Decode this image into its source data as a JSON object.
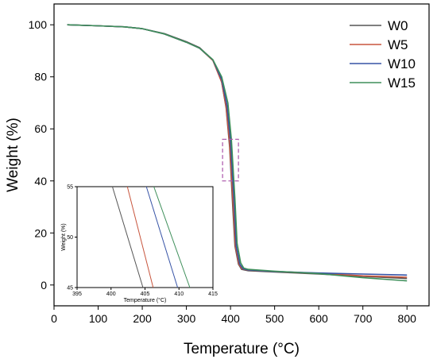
{
  "chart_data": [
    {
      "type": "line",
      "title": "",
      "xlabel": "Temperature (°C)",
      "ylabel": "Weight  (%)",
      "xlim": [
        0,
        850
      ],
      "ylim": [
        -8,
        108
      ],
      "xticks": [
        0,
        100,
        200,
        300,
        400,
        500,
        600,
        700,
        800
      ],
      "yticks": [
        0,
        20,
        40,
        60,
        80,
        100
      ],
      "grid": false,
      "legend_position": "top-right",
      "series": [
        {
          "name": "W0",
          "color": "#555555",
          "x": [
            30,
            100,
            160,
            200,
            250,
            300,
            330,
            360,
            380,
            390,
            398,
            405,
            410,
            418,
            425,
            440,
            500,
            600,
            700,
            800
          ],
          "y": [
            100,
            99.6,
            99.2,
            98.5,
            96.6,
            93.5,
            91.2,
            86.5,
            78,
            68,
            53,
            30,
            15,
            8,
            6,
            5.5,
            5,
            4.2,
            3.3,
            2.5
          ]
        },
        {
          "name": "W5",
          "color": "#c8553d",
          "x": [
            30,
            100,
            160,
            200,
            250,
            300,
            330,
            360,
            380,
            390,
            398,
            406,
            411,
            419,
            426,
            440,
            500,
            600,
            700,
            800
          ],
          "y": [
            100,
            99.6,
            99.2,
            98.5,
            96.5,
            93.3,
            91,
            86.3,
            78,
            68.5,
            54.5,
            31,
            15,
            8,
            6.2,
            5.7,
            5.2,
            4.5,
            3.5,
            3
          ]
        },
        {
          "name": "W10",
          "color": "#3653a6",
          "x": [
            30,
            100,
            160,
            200,
            250,
            300,
            330,
            360,
            380,
            392,
            400,
            408,
            413,
            421,
            428,
            440,
            500,
            600,
            700,
            800
          ],
          "y": [
            100,
            99.6,
            99.2,
            98.5,
            96.5,
            93.3,
            91,
            86.5,
            79,
            69,
            55.5,
            32,
            15,
            8,
            6.3,
            5.8,
            5.2,
            4.6,
            4.2,
            3.8
          ]
        },
        {
          "name": "W15",
          "color": "#3e8f5a",
          "x": [
            30,
            100,
            160,
            200,
            250,
            300,
            330,
            360,
            380,
            394,
            402,
            410,
            415,
            423,
            430,
            440,
            500,
            600,
            700,
            800
          ],
          "y": [
            100,
            99.6,
            99.2,
            98.5,
            96.5,
            93.3,
            91,
            86.6,
            80,
            70,
            56,
            33,
            16,
            8.5,
            6.5,
            6,
            5.3,
            4.4,
            2.8,
            1.6
          ]
        }
      ]
    },
    {
      "type": "line",
      "title": "",
      "xlabel": "Temperature (°C)",
      "ylabel": "Weight (%)",
      "xlim": [
        395,
        415
      ],
      "ylim": [
        45,
        55
      ],
      "xticks": [
        395,
        400,
        405,
        410,
        415
      ],
      "yticks": [
        45,
        50,
        55
      ],
      "grid": false,
      "series": [
        {
          "color": "#555555",
          "x": [
            400.2,
            404.7
          ],
          "y": [
            55,
            45
          ]
        },
        {
          "color": "#c8553d",
          "x": [
            402.4,
            406.2
          ],
          "y": [
            55,
            45
          ]
        },
        {
          "color": "#3653a6",
          "x": [
            405.2,
            409.8
          ],
          "y": [
            55,
            45
          ]
        },
        {
          "color": "#3e8f5a",
          "x": [
            406.3,
            411.6
          ],
          "y": [
            55,
            45
          ]
        }
      ]
    }
  ],
  "zoom_box": {
    "x_range": [
      382,
      418
    ],
    "y_range": [
      40,
      56
    ],
    "color": "#b060b0"
  }
}
